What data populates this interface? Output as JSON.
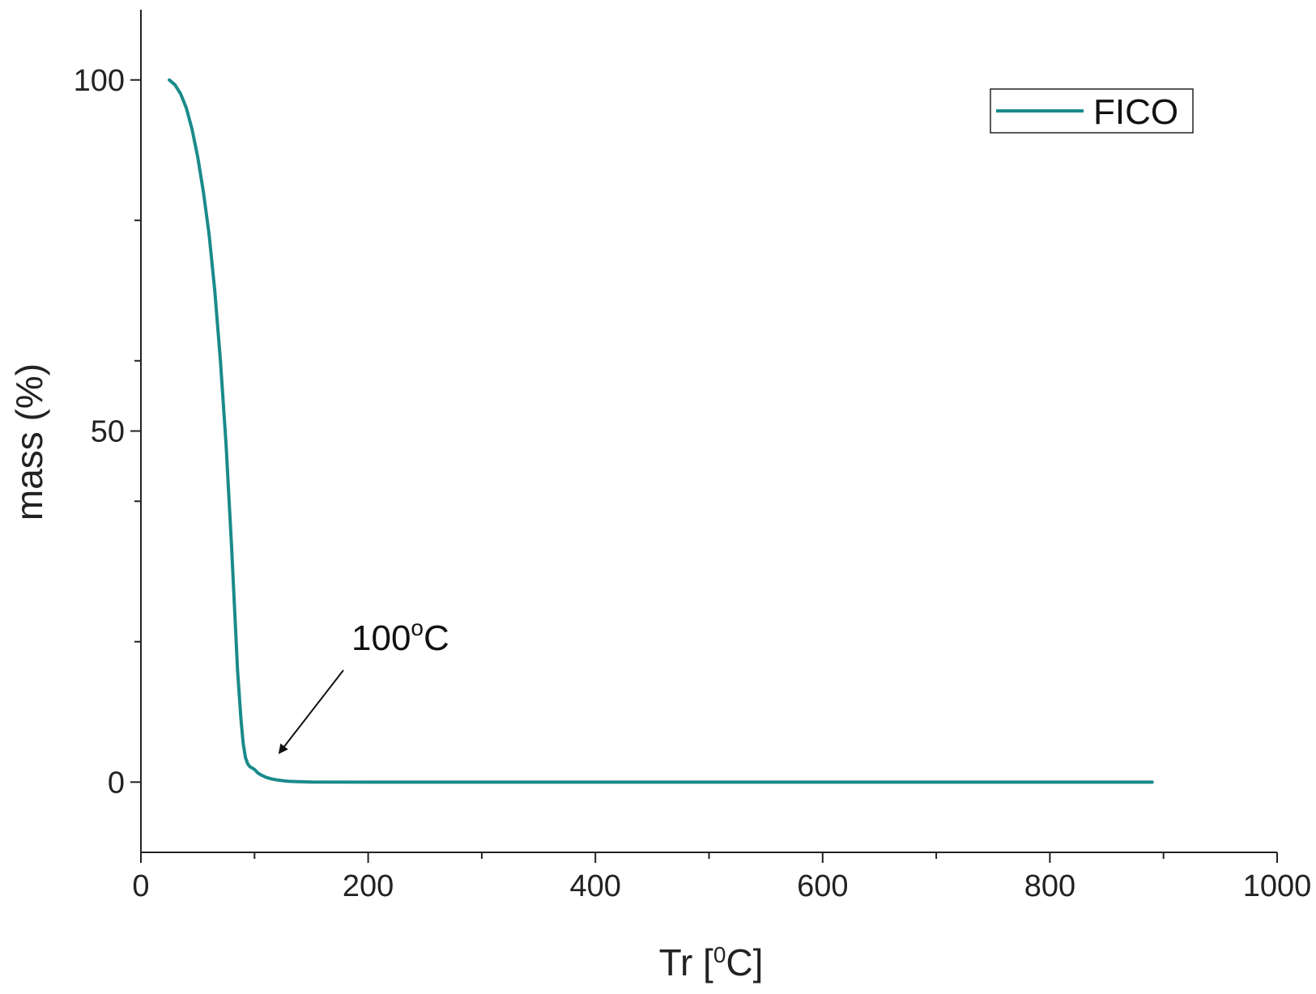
{
  "chart_data": {
    "type": "line",
    "xlabel": {
      "main": "Tr [",
      "sup": "0",
      "tail": "C]"
    },
    "ylabel": "mass (%)",
    "xlim": [
      0,
      1000
    ],
    "ylim": [
      -10,
      110
    ],
    "x_major_ticks": [
      0,
      200,
      400,
      600,
      800,
      1000
    ],
    "x_tick_labels": [
      "0",
      "200",
      "400",
      "600",
      "800",
      "1000"
    ],
    "x_minor_ticks": [
      100,
      300,
      500,
      700,
      900
    ],
    "y_major_ticks": [
      0,
      50,
      100
    ],
    "y_tick_labels": [
      "0",
      "50",
      "100"
    ],
    "y_minor_ticks": [
      20,
      40,
      60,
      80
    ],
    "grid": false,
    "legend_position": "top-right",
    "colors": {
      "series": "#1a8a8a",
      "axis": "#222222",
      "arrow": "#111111"
    },
    "series": [
      {
        "name": "FICO",
        "x": [
          25,
          30,
          35,
          40,
          45,
          50,
          55,
          60,
          65,
          70,
          75,
          80,
          85,
          88,
          90,
          92,
          94,
          96,
          98,
          100,
          103,
          106,
          110,
          115,
          120,
          125,
          130,
          140,
          150,
          200,
          300,
          400,
          500,
          600,
          700,
          800,
          890
        ],
        "y": [
          100,
          99.3,
          98,
          96,
          93,
          89,
          84,
          78,
          70,
          60,
          48,
          33,
          16,
          9,
          5.5,
          3.5,
          2.6,
          2.2,
          2.0,
          1.8,
          1.3,
          1.0,
          0.7,
          0.45,
          0.3,
          0.2,
          0.12,
          0.06,
          0.02,
          0,
          0,
          0,
          0,
          0,
          0,
          0,
          0
        ]
      }
    ],
    "annotations": [
      {
        "text_main": "100",
        "text_sup": "o",
        "text_tail": "C",
        "x": 100,
        "y": 1.5
      }
    ]
  }
}
